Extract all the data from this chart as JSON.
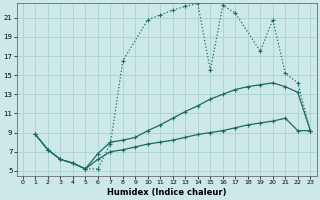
{
  "xlabel": "Humidex (Indice chaleur)",
  "bg_color": "#cce8e8",
  "grid_color": "#b0d4d4",
  "line_color": "#1a6b60",
  "xlim": [
    -0.5,
    23.5
  ],
  "ylim": [
    4.5,
    22.5
  ],
  "yticks": [
    5,
    7,
    9,
    11,
    13,
    15,
    17,
    19,
    21
  ],
  "xticks": [
    0,
    1,
    2,
    3,
    4,
    5,
    6,
    7,
    8,
    9,
    10,
    11,
    12,
    13,
    14,
    15,
    16,
    17,
    18,
    19,
    20,
    21,
    22,
    23
  ],
  "line1_x": [
    1,
    2,
    3,
    4,
    5,
    6,
    7,
    8,
    10,
    11,
    12,
    13,
    14,
    15,
    16,
    17,
    19,
    20,
    21,
    22,
    23
  ],
  "line1_y": [
    8.8,
    7.2,
    6.2,
    5.8,
    5.2,
    5.2,
    7.8,
    16.5,
    20.8,
    21.3,
    21.8,
    22.2,
    22.5,
    15.5,
    22.3,
    21.5,
    17.5,
    20.8,
    15.2,
    14.2,
    9.2
  ],
  "line2_x": [
    1,
    2,
    3,
    4,
    5,
    6,
    7,
    8,
    9,
    10,
    11,
    12,
    13,
    14,
    15,
    16,
    17,
    18,
    19,
    20,
    21,
    22,
    23
  ],
  "line2_y": [
    8.8,
    7.2,
    6.2,
    5.8,
    5.2,
    6.8,
    8.0,
    8.2,
    8.5,
    9.2,
    9.8,
    10.5,
    11.2,
    11.8,
    12.5,
    13.0,
    13.5,
    13.8,
    14.0,
    14.2,
    13.8,
    13.2,
    9.2
  ],
  "line3_x": [
    1,
    2,
    3,
    4,
    5,
    6,
    7,
    8,
    9,
    10,
    11,
    12,
    13,
    14,
    15,
    16,
    17,
    18,
    19,
    20,
    21,
    22,
    23
  ],
  "line3_y": [
    8.8,
    7.2,
    6.2,
    5.8,
    5.2,
    6.2,
    7.0,
    7.2,
    7.5,
    7.8,
    8.0,
    8.2,
    8.5,
    8.8,
    9.0,
    9.2,
    9.5,
    9.8,
    10.0,
    10.2,
    10.5,
    9.2,
    9.2
  ]
}
